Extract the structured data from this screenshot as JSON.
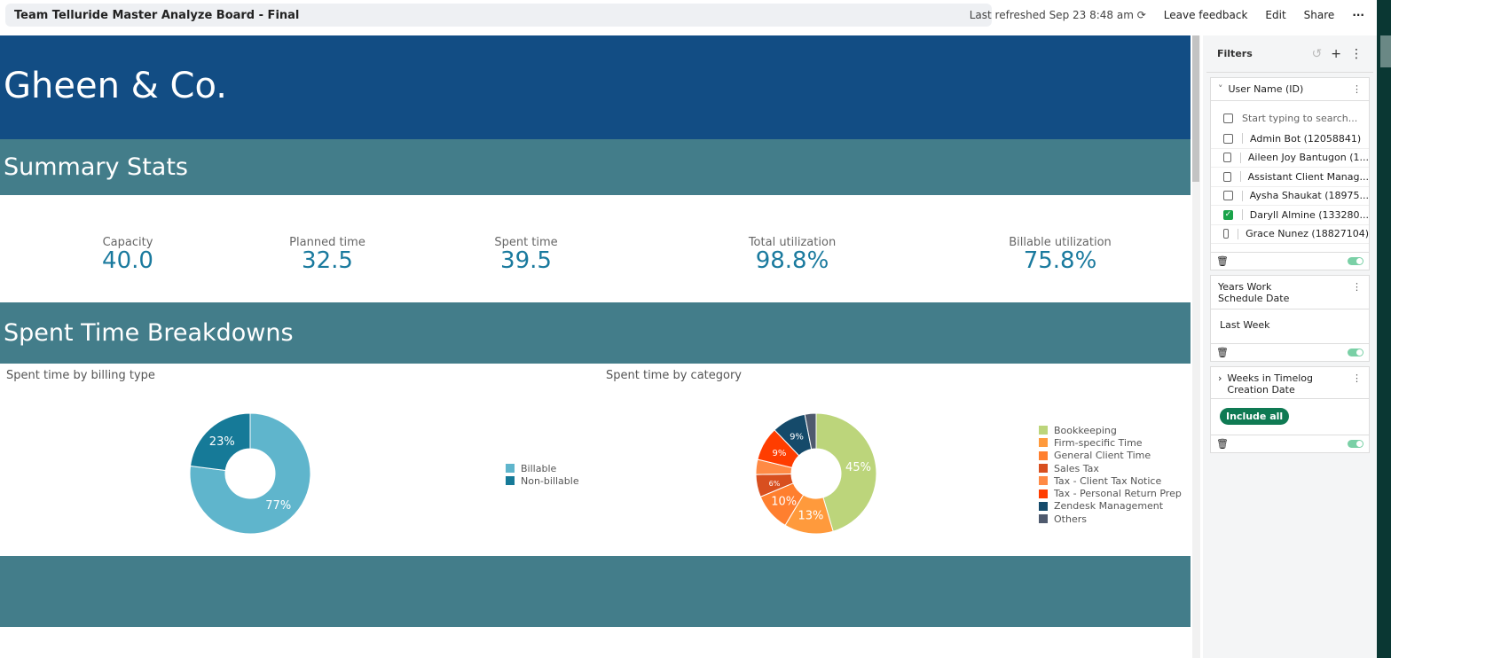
{
  "topbar": {
    "title": "Team Telluride Master Analyze Board - Final",
    "refreshed": "Last refreshed Sep 23 8:48 am",
    "feedback": "Leave feedback",
    "edit": "Edit",
    "share": "Share",
    "more": "···"
  },
  "hero": {
    "title": "Gheen & Co."
  },
  "summary": {
    "title": "Summary Stats",
    "stats": [
      {
        "label": "Capacity",
        "value": "40.0"
      },
      {
        "label": "Planned time",
        "value": "32.5"
      },
      {
        "label": "Spent time",
        "value": "39.5"
      },
      {
        "label": "Total utilization",
        "value": "98.8%"
      },
      {
        "label": "Billable utilization",
        "value": "75.8%"
      }
    ]
  },
  "breakdowns": {
    "title": "Spent Time Breakdowns"
  },
  "chart_data": [
    {
      "type": "pie",
      "title": "Spent time by billing type",
      "legend_position": "right",
      "labels": [
        "Billable",
        "Non-billable"
      ],
      "values": [
        77,
        23
      ],
      "data_labels": [
        "77%",
        "23%"
      ],
      "colors": [
        "#5fb5cc",
        "#167a98"
      ]
    },
    {
      "type": "pie",
      "title": "Spent time by category",
      "legend_position": "right",
      "labels": [
        "Bookkeeping",
        "Firm-specific Time",
        "General Client Time",
        "Sales Tax",
        "Tax - Client Tax Notice",
        "Tax - Personal Return Prep",
        "Zendesk Management",
        "Others"
      ],
      "values": [
        45,
        13,
        10,
        6,
        4,
        9,
        9,
        3
      ],
      "data_labels": [
        "45%",
        "13%",
        "10%",
        "6%",
        "",
        "9%",
        "9%",
        ""
      ],
      "colors": [
        "#bcd57b",
        "#ff9a3c",
        "#ff7f2f",
        "#d84f1f",
        "#ff8a45",
        "#ff3d00",
        "#154a6a",
        "#4f5a6e"
      ]
    }
  ],
  "filters": {
    "title": "Filters",
    "user": {
      "title": "User Name (ID)",
      "placeholder": "Start typing to search...",
      "items": [
        {
          "label": "Admin Bot (12058841)",
          "checked": false
        },
        {
          "label": "Aileen Joy Bantugon (1...",
          "checked": false
        },
        {
          "label": "Assistant Client Manag...",
          "checked": false
        },
        {
          "label": "Aysha Shaukat (18975...",
          "checked": false
        },
        {
          "label": "Daryll Almine (133280...",
          "checked": true
        },
        {
          "label": "Grace Nunez (18827104)",
          "checked": false
        }
      ]
    },
    "years": {
      "title": "Years Work Schedule Date",
      "value": "Last Week"
    },
    "weeks": {
      "title": "Weeks in Timelog Creation Date",
      "value": "Include all"
    }
  }
}
